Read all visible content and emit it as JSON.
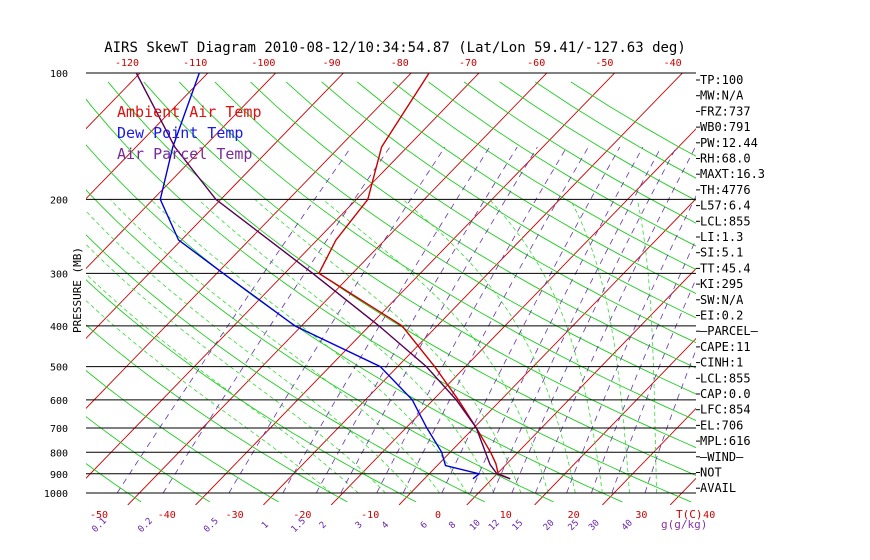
{
  "chart_data": {
    "type": "line",
    "title": "AIRS SkewT Diagram 2010-08-12/10:34:54.87 (Lat/Lon 59.41/-127.63 deg)",
    "ylabel": "PRESSURE (MB)",
    "xlabel_bottom_unit": "T(C)",
    "xlabel_mix_unit": "g(g/kg)",
    "y_scale": "log",
    "ylim": [
      1000,
      100
    ],
    "pressure_ticks": [
      "100",
      "200",
      "300",
      "400",
      "500",
      "600",
      "700",
      "800",
      "900",
      "1000"
    ],
    "temp_ticks_bottom": [
      "-50",
      "-40",
      "-30",
      "-20",
      "-10",
      "0",
      "10",
      "20",
      "30",
      "40"
    ],
    "temp_ticks_top": [
      "-120",
      "-110",
      "-100",
      "-90",
      "-80",
      "-70",
      "-60",
      "-50",
      "-40"
    ],
    "mixing_ratio_labels": [
      "0.1",
      "0.2",
      "0.5",
      "1",
      "1.5",
      "2",
      "3",
      "4",
      "6",
      "8",
      "10",
      "12",
      "15",
      "20",
      "25",
      "30",
      "40"
    ],
    "legend": [
      {
        "name": "Ambient Air Temp",
        "color": "#dd1111"
      },
      {
        "name": "Dew Point Temp",
        "color": "#1a1aee"
      },
      {
        "name": "Air Parcel Temp",
        "color": "#7a2a9a"
      }
    ],
    "series": [
      {
        "name": "Ambient Air Temp",
        "color": "#cc0000",
        "points": [
          {
            "p": 925,
            "t": 14.3
          },
          {
            "p": 900,
            "t": 11.8
          },
          {
            "p": 850,
            "t": 9.9
          },
          {
            "p": 800,
            "t": 7.5
          },
          {
            "p": 700,
            "t": 1.8
          },
          {
            "p": 600,
            "t": -5.0
          },
          {
            "p": 500,
            "t": -13.4
          },
          {
            "p": 400,
            "t": -24.2
          },
          {
            "p": 350,
            "t": -33.5
          },
          {
            "p": 300,
            "t": -44.2
          },
          {
            "p": 250,
            "t": -46.6
          },
          {
            "p": 200,
            "t": -47.9
          },
          {
            "p": 150,
            "t": -53.6
          },
          {
            "p": 100,
            "t": -57.5
          }
        ]
      },
      {
        "name": "Dew Point Temp",
        "color": "#0000dd",
        "points": [
          {
            "p": 925,
            "t": 8.8
          },
          {
            "p": 900,
            "t": 9.0
          },
          {
            "p": 860,
            "t": 2.8
          },
          {
            "p": 800,
            "t": 0.3
          },
          {
            "p": 700,
            "t": -5.5
          },
          {
            "p": 600,
            "t": -11.8
          },
          {
            "p": 500,
            "t": -21.4
          },
          {
            "p": 400,
            "t": -40.0
          },
          {
            "p": 300,
            "t": -58.3
          },
          {
            "p": 250,
            "t": -69.8
          },
          {
            "p": 200,
            "t": -78.5
          },
          {
            "p": 150,
            "t": -84.4
          },
          {
            "p": 100,
            "t": -91.4
          }
        ]
      },
      {
        "name": "Air Parcel Temp",
        "color": "#550055",
        "points": [
          {
            "p": 925,
            "t": 14.3
          },
          {
            "p": 900,
            "t": 11.6
          },
          {
            "p": 855,
            "t": 9.2
          },
          {
            "p": 700,
            "t": 1.8
          },
          {
            "p": 600,
            "t": -5.3
          },
          {
            "p": 500,
            "t": -14.6
          },
          {
            "p": 400,
            "t": -27.6
          },
          {
            "p": 300,
            "t": -45.1
          },
          {
            "p": 200,
            "t": -70.3
          },
          {
            "p": 150,
            "t": -84.1
          },
          {
            "p": 100,
            "t": -100.7
          }
        ]
      }
    ]
  },
  "indices": [
    "TP:100",
    "MW:N/A",
    "FRZ:737",
    "WB0:791",
    "PW:12.44",
    "RH:68.0",
    "MAXT:16.3",
    "TH:4776",
    "L57:6.4",
    "LCL:855",
    "LI:1.3",
    "SI:5.1",
    "TT:45.4",
    "KI:295",
    "SW:N/A",
    "EI:0.2",
    "—PARCEL—",
    "CAPE:11",
    "CINH:1",
    "LCL:855",
    "CAP:0.0",
    "LFC:854",
    "EL:706",
    "MPL:616",
    "—WIND—",
    "NOT",
    "AVAIL"
  ]
}
